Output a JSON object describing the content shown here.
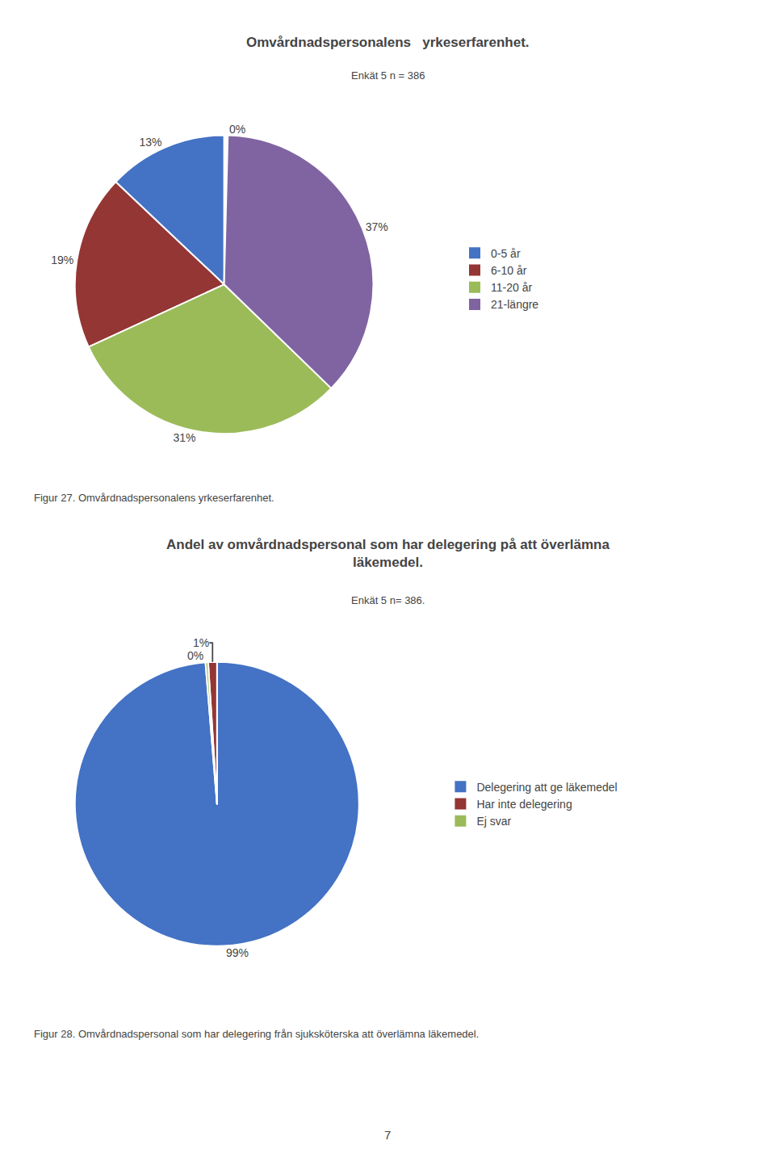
{
  "chart_data": [
    {
      "type": "pie",
      "title": "Omvårdnadspersonalens   yrkeserfarenhet.",
      "subtitle": "Enkät 5 n = 386",
      "categories": [
        null,
        "0-5 år",
        "6-10 år",
        "11-20 år",
        "21-längre"
      ],
      "values": [
        0.4,
        13,
        19,
        31,
        37
      ],
      "value_labels": [
        "0%",
        "13%",
        "19%",
        "31%",
        "37%"
      ],
      "colors": [
        "#ffffff",
        "#4472C4",
        "#943634",
        "#9BBB59",
        "#8064A2"
      ],
      "data_labels": true,
      "legend": "right",
      "annotations": [
        "Figur 27. Omvårdnadspersonalens yrkeserfarenhet."
      ]
    },
    {
      "type": "pie",
      "title": "Andel av omvårdnadspersonal som har delegering på att överlämna\nläkemedel.",
      "subtitle": "Enkät 5 n= 386.",
      "categories": [
        "Delegering att ge läkemedel",
        "Har inte delegering",
        "Ej svar"
      ],
      "values": [
        99,
        1,
        0.3
      ],
      "value_labels": [
        "99%",
        "1%",
        "0%"
      ],
      "colors": [
        "#4472C4",
        "#943634",
        "#9BBB59"
      ],
      "data_labels": true,
      "legend": "right",
      "annotations": [
        "Figur 28. Omvårdnadspersonal som har delegering från sjuksköterska att överlämna läkemedel.",
        "7"
      ]
    }
  ]
}
